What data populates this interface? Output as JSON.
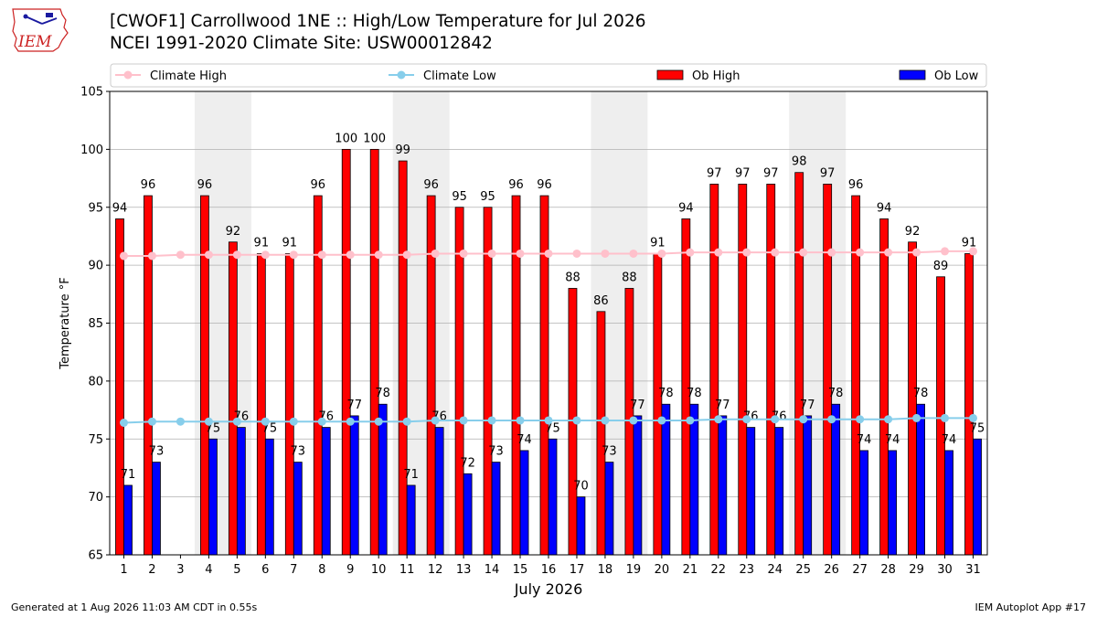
{
  "header": {
    "title_line1": "[CWOF1] Carrollwood 1NE :: High/Low Temperature for Jul 2026",
    "title_line2": "NCEI 1991-2020 Climate Site: USW00012842",
    "logo_text": "IEM"
  },
  "footer": {
    "generated": "Generated at 1 Aug 2026 11:03 AM CDT in 0.55s",
    "app": "IEM Autoplot App #17"
  },
  "colors": {
    "climate_high": "#ffc0cb",
    "climate_low": "#87ceeb",
    "ob_high": "#ff0000",
    "ob_low": "#0000ff",
    "weekend_shade": "#eeeeee",
    "grid": "#b0b0b0"
  },
  "chart_data": {
    "type": "bar",
    "xlabel": "July 2026",
    "ylabel": "Temperature °F",
    "ylim": [
      65,
      105
    ],
    "yticks": [
      65,
      70,
      75,
      80,
      85,
      90,
      95,
      100,
      105
    ],
    "grid": true,
    "legend_position": "top",
    "shaded_week_spans": [
      [
        4,
        5
      ],
      [
        11,
        12
      ],
      [
        18,
        19
      ],
      [
        25,
        26
      ]
    ],
    "categories": [
      "1",
      "2",
      "3",
      "4",
      "5",
      "6",
      "7",
      "8",
      "9",
      "10",
      "11",
      "12",
      "13",
      "14",
      "15",
      "16",
      "17",
      "18",
      "19",
      "20",
      "21",
      "22",
      "23",
      "24",
      "25",
      "26",
      "27",
      "28",
      "29",
      "30",
      "31"
    ],
    "series": [
      {
        "name": "Climate High",
        "kind": "line",
        "values": [
          90.8,
          90.8,
          90.9,
          90.9,
          90.9,
          90.9,
          90.9,
          90.9,
          90.9,
          90.9,
          90.9,
          91.0,
          91.0,
          91.0,
          91.0,
          91.0,
          91.0,
          91.0,
          91.0,
          91.0,
          91.1,
          91.1,
          91.1,
          91.1,
          91.1,
          91.1,
          91.1,
          91.1,
          91.1,
          91.2,
          91.2
        ]
      },
      {
        "name": "Climate Low",
        "kind": "line",
        "values": [
          76.4,
          76.5,
          76.5,
          76.5,
          76.5,
          76.5,
          76.5,
          76.5,
          76.5,
          76.5,
          76.5,
          76.6,
          76.6,
          76.6,
          76.6,
          76.6,
          76.6,
          76.6,
          76.6,
          76.6,
          76.6,
          76.7,
          76.7,
          76.7,
          76.7,
          76.7,
          76.7,
          76.7,
          76.8,
          76.8,
          76.8
        ]
      },
      {
        "name": "Ob High",
        "kind": "bar",
        "values": [
          94,
          96,
          null,
          96,
          92,
          91,
          91,
          96,
          100,
          100,
          99,
          96,
          95,
          95,
          96,
          96,
          88,
          86,
          88,
          91,
          94,
          97,
          97,
          97,
          98,
          97,
          96,
          94,
          92,
          89,
          91
        ]
      },
      {
        "name": "Ob Low",
        "kind": "bar",
        "values": [
          71,
          73,
          null,
          75,
          76,
          75,
          73,
          76,
          77,
          78,
          71,
          76,
          72,
          73,
          74,
          75,
          70,
          73,
          77,
          78,
          78,
          77,
          76,
          76,
          77,
          78,
          74,
          74,
          78,
          74,
          75
        ]
      }
    ]
  }
}
